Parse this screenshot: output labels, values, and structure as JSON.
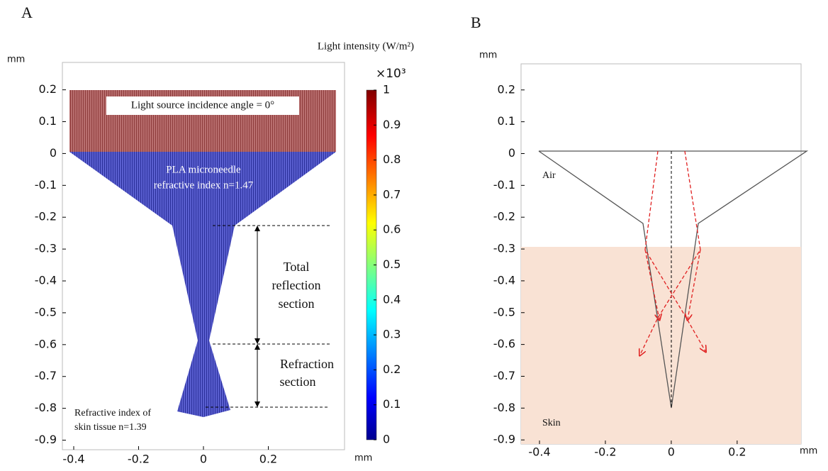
{
  "panel_a": {
    "label": "A",
    "y_unit": "mm",
    "x_unit": "mm",
    "xlim": [
      -0.435,
      0.435
    ],
    "ylim": [
      -0.93,
      0.286
    ],
    "xticks": [
      -0.4,
      -0.2,
      0,
      0.2
    ],
    "yticks": [
      0.2,
      0.1,
      0,
      -0.1,
      -0.2,
      -0.3,
      -0.4,
      -0.5,
      -0.6,
      -0.7,
      -0.8,
      -0.9
    ],
    "colorbar": {
      "title": "Light intensity (W/m²)",
      "multiplier": "×10³",
      "lim": [
        0,
        1
      ],
      "ticks": [
        0,
        0.1,
        0.2,
        0.3,
        0.4,
        0.5,
        0.6,
        0.7,
        0.8,
        0.9,
        1
      ]
    },
    "annotations": {
      "source": "Light source incidence angle = 0°",
      "needle_1": "PLA microneedle",
      "needle_2": "refractive index n=1.47",
      "total_1": "Total",
      "total_2": "reflection",
      "total_3": "section",
      "refr_1": "Refraction",
      "refr_2": "section",
      "skin_1": "Refractive index of",
      "skin_2": "skin tissue    n=1.39"
    }
  },
  "panel_b": {
    "label": "B",
    "y_unit": "mm",
    "x_unit": "mm",
    "xlim": [
      -0.456,
      0.394
    ],
    "ylim": [
      -0.913,
      0.282
    ],
    "xticks": [
      -0.4,
      -0.2,
      0,
      0.2
    ],
    "yticks": [
      0.2,
      0.1,
      0,
      -0.1,
      -0.2,
      -0.3,
      -0.4,
      -0.5,
      -0.6,
      -0.7,
      -0.8,
      -0.9
    ],
    "annotations": {
      "air": "Air",
      "skin": "Skin"
    }
  }
}
